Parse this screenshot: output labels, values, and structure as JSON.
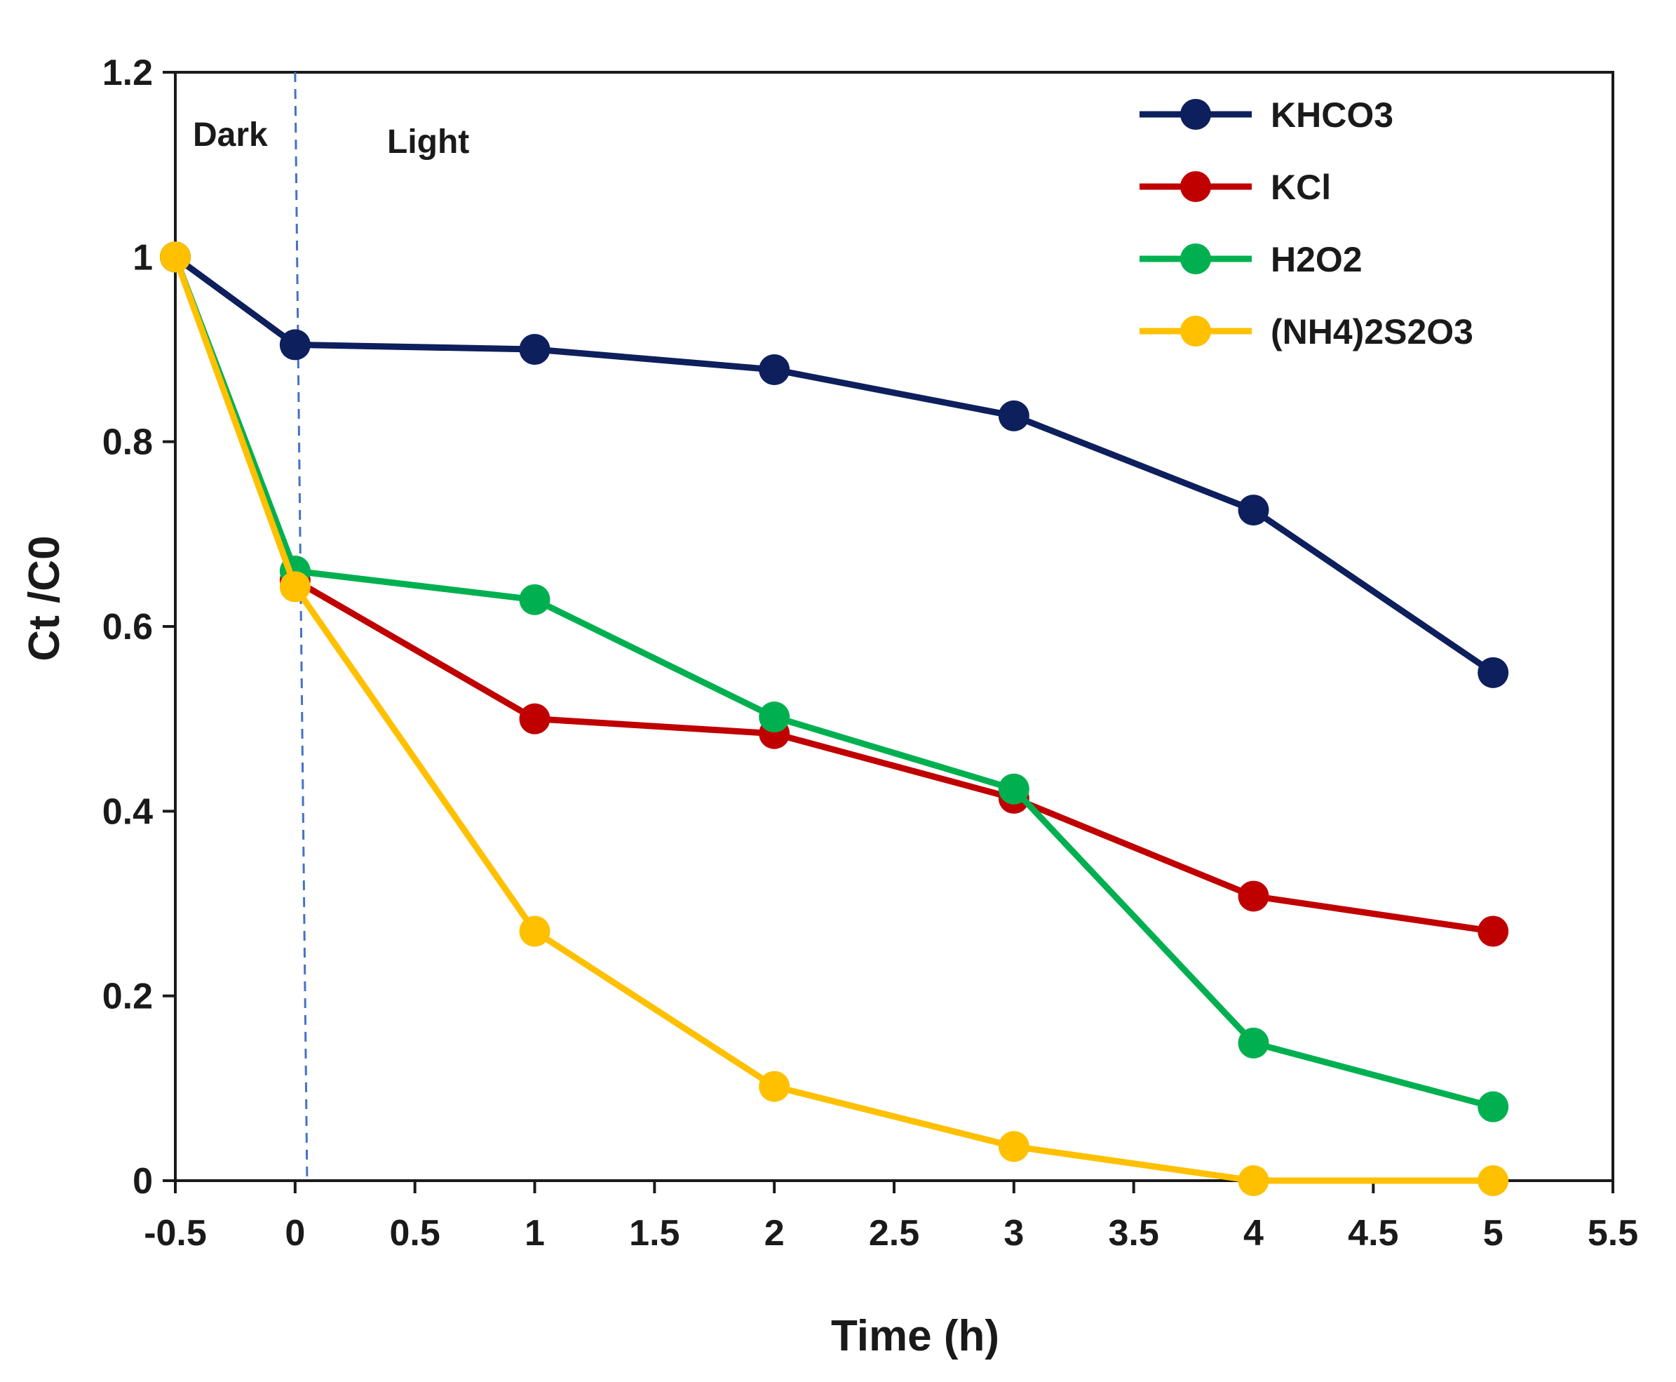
{
  "chart_data": {
    "type": "line",
    "title": "",
    "xlabel": "Time (h)",
    "ylabel": "Ct /C0",
    "xlim": [
      -0.5,
      5.5
    ],
    "ylim": [
      0,
      1.2
    ],
    "xticks": [
      "-0.5",
      "0",
      "0.5",
      "1",
      "1.5",
      "2",
      "2.5",
      "3",
      "3.5",
      "4",
      "4.5",
      "5",
      "5.5"
    ],
    "yticks": [
      "0",
      "0.2",
      "0.4",
      "0.6",
      "0.8",
      "1",
      "1.2"
    ],
    "grid": false,
    "legend_position": "top-right",
    "annotations": [
      {
        "text": "Dark"
      },
      {
        "text": "Light"
      }
    ],
    "divider_line": {
      "x_top": 0,
      "x_bottom": 0.05,
      "color": "#4472C4",
      "style": "dashed"
    },
    "x": [
      -0.5,
      0,
      1,
      2,
      3,
      4,
      5
    ],
    "series": [
      {
        "name": "KHCO3",
        "color": "#0D1F5C",
        "values": [
          1.0,
          0.905,
          0.9,
          0.878,
          0.828,
          0.726,
          0.55
        ]
      },
      {
        "name": "KCl",
        "color": "#C00000",
        "values": [
          1.0,
          0.65,
          0.5,
          0.484,
          0.414,
          0.308,
          0.27
        ]
      },
      {
        "name": "H2O2",
        "color": "#00B050",
        "values": [
          1.0,
          0.66,
          0.629,
          0.502,
          0.424,
          0.149,
          0.08
        ]
      },
      {
        "name": "(NH4)2S2O3",
        "color": "#FFC000",
        "values": [
          1.0,
          0.643,
          0.27,
          0.102,
          0.037,
          0.0,
          0.0
        ]
      }
    ]
  }
}
